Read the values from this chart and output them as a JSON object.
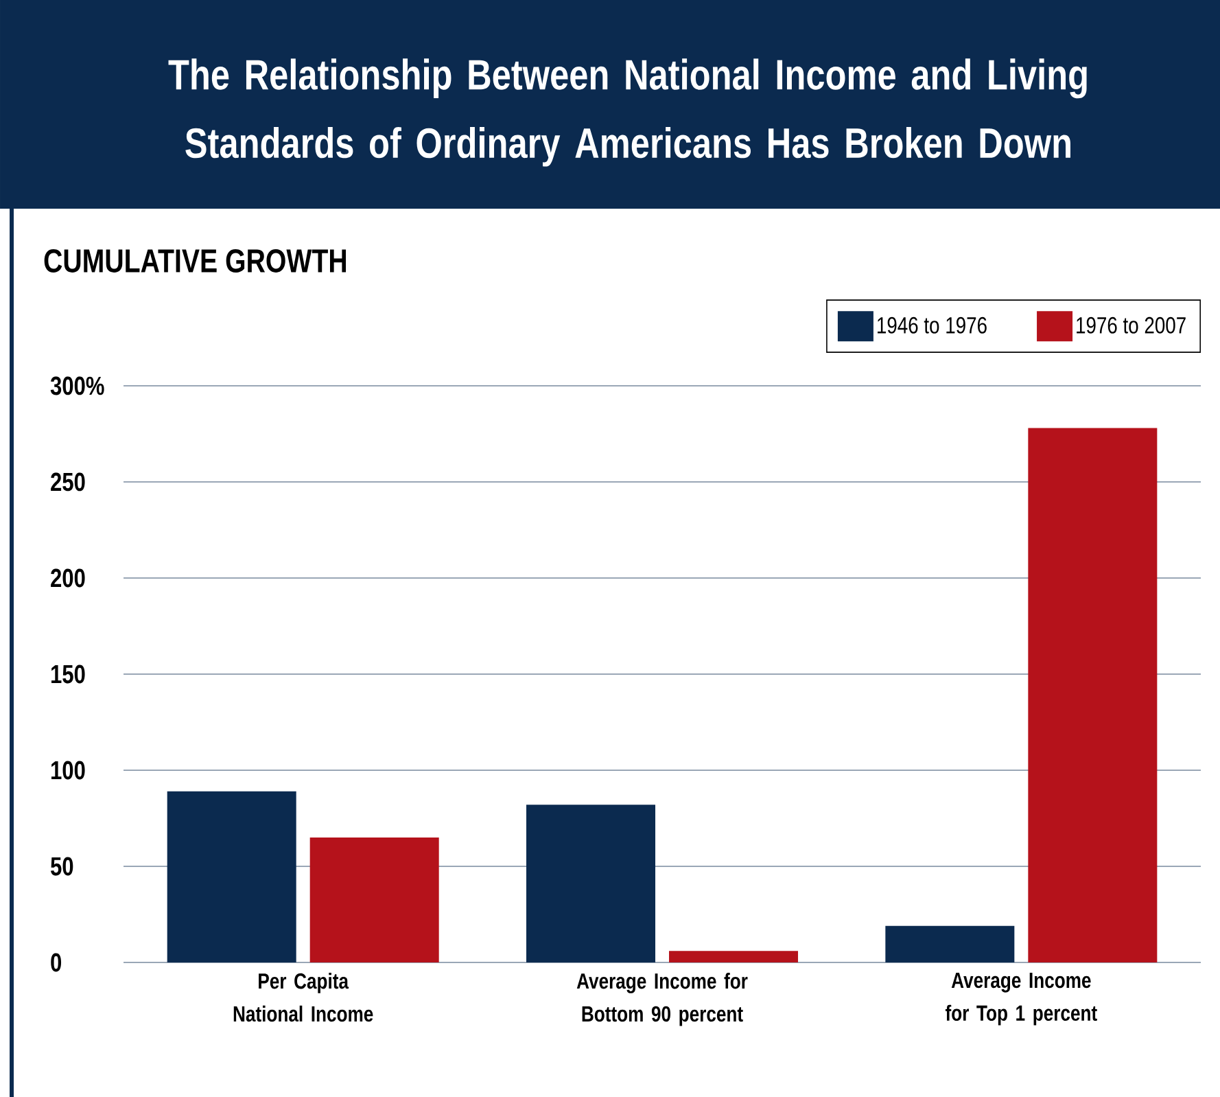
{
  "chart_data": {
    "type": "bar",
    "title": "The Relationship Between National Income and Living Standards of Ordinary Americans Has Broken Down",
    "subtitle": "CUMULATIVE GROWTH",
    "categories": [
      "Per Capita National Income",
      "Average  Income for Bottom 90 percent",
      "Average  Income for Top 1 percent"
    ],
    "series": [
      {
        "name": "1946 to 1976",
        "color": "#0b2a4f",
        "values": [
          89,
          82,
          19
        ]
      },
      {
        "name": "1976 to 2007",
        "color": "#b5121b",
        "values": [
          65,
          6,
          278
        ]
      }
    ],
    "ylim": [
      0,
      300
    ],
    "yticks": [
      0,
      50,
      100,
      150,
      200,
      250,
      {
        "value": 300,
        "label": "300%"
      }
    ],
    "grid": "y",
    "legend": "top right"
  }
}
